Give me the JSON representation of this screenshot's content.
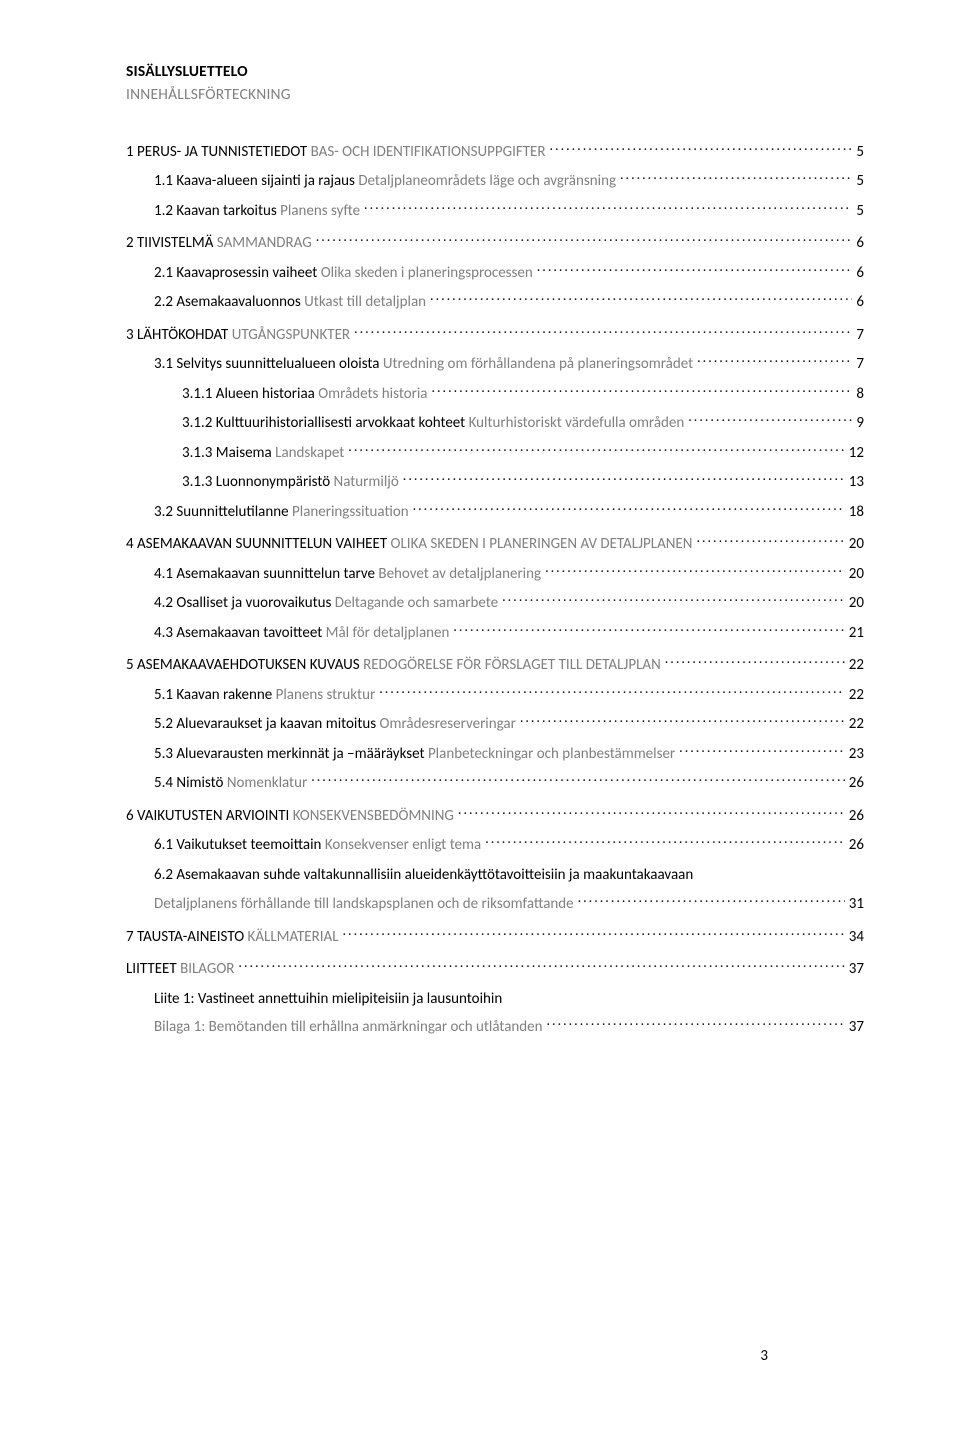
{
  "title_fi": "SISÄLLYSLUETTELO",
  "title_sv": "INNEHÅLLSFÖRTECKNING",
  "page_number": "3",
  "entries": [
    {
      "level": 0,
      "fi": "1 PERUS- JA TUNNISTETIEDOT",
      "sv": "BAS- OCH IDENTIFIKATIONSUPPGIFTER",
      "page": "5"
    },
    {
      "level": 1,
      "fi": "1.1 Kaava-alueen sijainti ja rajaus",
      "sv": "Detaljplaneområdets läge och avgränsning",
      "page": "5"
    },
    {
      "level": 1,
      "fi": "1.2 Kaavan tarkoitus",
      "sv": "Planens syfte",
      "page": "5"
    },
    {
      "level": 0,
      "fi": "2 TIIVISTELMÄ",
      "sv": "SAMMANDRAG",
      "page": "6"
    },
    {
      "level": 1,
      "fi": "2.1 Kaavaprosessin vaiheet",
      "sv": "Olika skeden i planeringsprocessen",
      "page": "6"
    },
    {
      "level": 1,
      "fi": "2.2 Asemakaavaluonnos",
      "sv": "Utkast till detaljplan",
      "page": "6"
    },
    {
      "level": 0,
      "fi": "3 LÄHTÖKOHDAT",
      "sv": "UTGÅNGSPUNKTER",
      "page": "7"
    },
    {
      "level": 1,
      "fi": "3.1 Selvitys suunnittelualueen oloista",
      "sv": "Utredning om förhållandena på planeringsområdet",
      "page": "7"
    },
    {
      "level": 2,
      "fi": "3.1.1 Alueen historiaa",
      "sv": "Områdets historia",
      "page": "8"
    },
    {
      "level": 2,
      "fi": "3.1.2 Kulttuurihistoriallisesti arvokkaat kohteet",
      "sv": "Kulturhistoriskt värdefulla områden",
      "page": "9"
    },
    {
      "level": 2,
      "fi": "3.1.3 Maisema",
      "sv": "Landskapet",
      "page": "12"
    },
    {
      "level": 2,
      "fi": "3.1.3 Luonnonympäristö",
      "sv": "Naturmiljö",
      "page": "13"
    },
    {
      "level": 1,
      "fi": "3.2 Suunnittelutilanne",
      "sv": "Planeringssituation",
      "page": "18"
    },
    {
      "level": 0,
      "fi": "4 ASEMAKAAVAN SUUNNITTELUN VAIHEET",
      "sv": "OLIKA SKEDEN I PLANERINGEN AV DETALJPLANEN",
      "page": "20"
    },
    {
      "level": 1,
      "fi": "4.1 Asemakaavan suunnittelun tarve",
      "sv": "Behovet av detaljplanering",
      "page": "20"
    },
    {
      "level": 1,
      "fi": "4.2 Osalliset ja vuorovaikutus",
      "sv": "Deltagande och samarbete",
      "page": "20"
    },
    {
      "level": 1,
      "fi": "4.3 Asemakaavan tavoitteet",
      "sv": "Mål för detaljplanen",
      "page": "21"
    },
    {
      "level": 0,
      "fi": "5 ASEMAKAAVAEHDOTUKSEN KUVAUS",
      "sv": "REDOGÖRELSE FÖR FÖRSLAGET TILL DETALJPLAN",
      "page": "22"
    },
    {
      "level": 1,
      "fi": "5.1 Kaavan rakenne",
      "sv": "Planens struktur",
      "page": "22"
    },
    {
      "level": 1,
      "fi": "5.2 Aluevaraukset ja kaavan mitoitus",
      "sv": "Områdesreserveringar",
      "page": "22"
    },
    {
      "level": 1,
      "fi": "5.3 Aluevarausten merkinnät ja –määräykset",
      "sv": "Planbeteckningar och planbestämmelser",
      "page": "23"
    },
    {
      "level": 1,
      "fi": "5.4 Nimistö",
      "sv": "Nomenklatur",
      "page": "26"
    },
    {
      "level": 0,
      "fi": "6 VAIKUTUSTEN ARVIOINTI",
      "sv": "KONSEKVENSBEDÖMNING",
      "page": "26"
    },
    {
      "level": 1,
      "fi": "6.1 Vaikutukset teemoittain",
      "sv": "Konsekvenser enligt tema",
      "page": "26"
    },
    {
      "level": 1,
      "fi": "6.2 Asemakaavan suhde valtakunnallisiin alueidenkäyttötavoitteisiin ja maakuntakaavaan",
      "sv": "",
      "page": ""
    },
    {
      "level": 1,
      "fi": "",
      "sv": "Detaljplanens förhållande till landskapsplanen och de riksomfattande",
      "page": "31",
      "svonly": true
    },
    {
      "level": 0,
      "fi": "7 TAUSTA-AINEISTO",
      "sv": "KÄLLMATERIAL",
      "page": "34"
    },
    {
      "level": 0,
      "fi": "LIITTEET",
      "sv": "BILAGOR",
      "page": "37"
    }
  ],
  "liite": {
    "title_fi": "Liite 1: Vastineet annettuihin mielipiteisiin ja lausuntoihin",
    "sub_sv": "Bilaga 1: Bemötanden till erhållna anmärkningar och utlåtanden",
    "page": "37"
  }
}
